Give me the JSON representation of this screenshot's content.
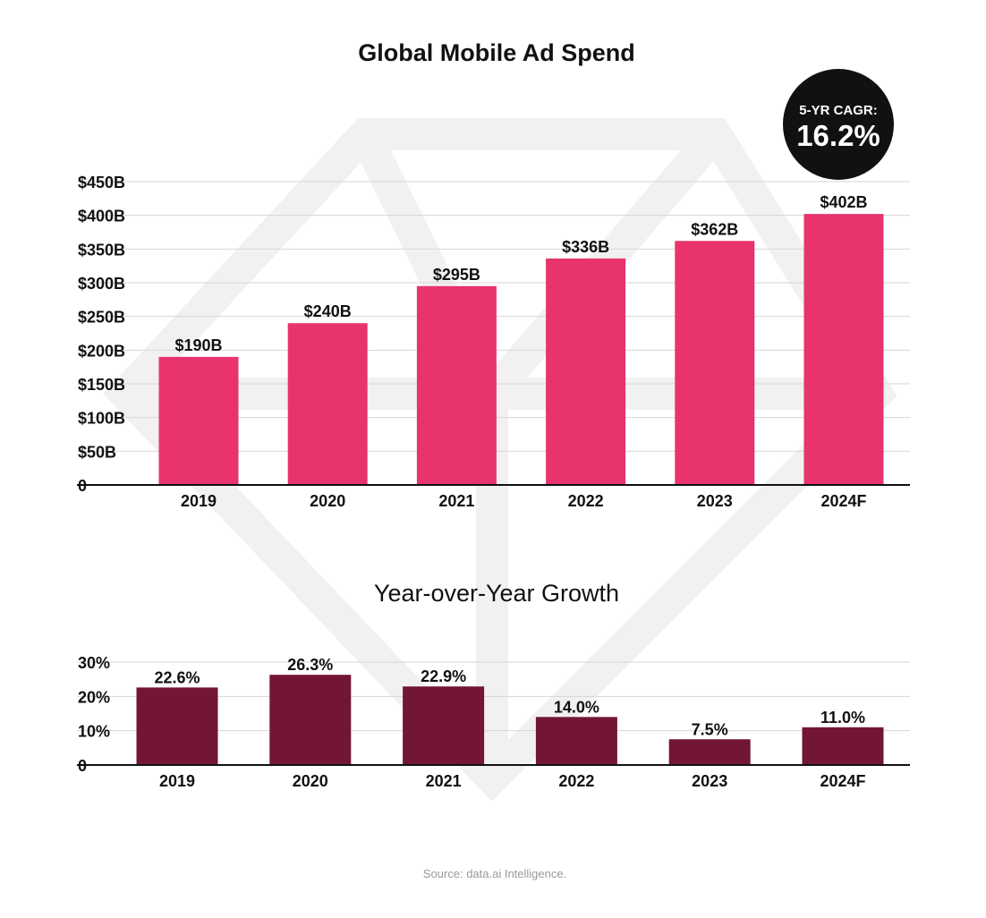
{
  "colors": {
    "spend_bar": "#E8336C",
    "growth_bar": "#731634",
    "gridline": "#D6D6D6",
    "axis": "#111111",
    "badge_bg": "#111111",
    "badge_text": "#FFFFFF",
    "watermark": "#F1F1F1",
    "source_text": "#9A9A9A"
  },
  "badge": {
    "label": "5-YR CAGR:",
    "value": "16.2%"
  },
  "source": "Source: data.ai Intelligence.",
  "watermark_icon": "diamond-logo-icon",
  "chart_data": [
    {
      "type": "bar",
      "title": "Global Mobile Ad Spend",
      "xlabel": "",
      "ylabel": "",
      "categories": [
        "2019",
        "2020",
        "2021",
        "2022",
        "2023",
        "2024F"
      ],
      "values": [
        190,
        240,
        295,
        336,
        362,
        402
      ],
      "data_labels": [
        "$190B",
        "$240B",
        "$295B",
        "$336B",
        "$362B",
        "$402B"
      ],
      "ylim": [
        0,
        450
      ],
      "yticks": [
        0,
        50,
        100,
        150,
        200,
        250,
        300,
        350,
        400,
        450
      ],
      "ytick_labels": [
        "0",
        "$50B",
        "$100B",
        "$150B",
        "$200B",
        "$250B",
        "$300B",
        "$350B",
        "$400B",
        "$450B"
      ],
      "grid": true,
      "legend": "none"
    },
    {
      "type": "bar",
      "title": "Year-over-Year Growth",
      "xlabel": "",
      "ylabel": "",
      "categories": [
        "2019",
        "2020",
        "2021",
        "2022",
        "2023",
        "2024F"
      ],
      "values": [
        22.6,
        26.3,
        22.9,
        14.0,
        7.5,
        11.0
      ],
      "data_labels": [
        "22.6%",
        "26.3%",
        "22.9%",
        "14.0%",
        "7.5%",
        "11.0%"
      ],
      "ylim": [
        0,
        30
      ],
      "yticks": [
        0,
        10,
        20,
        30
      ],
      "ytick_labels": [
        "0",
        "10%",
        "20%",
        "30%"
      ],
      "grid": true,
      "legend": "none"
    }
  ]
}
